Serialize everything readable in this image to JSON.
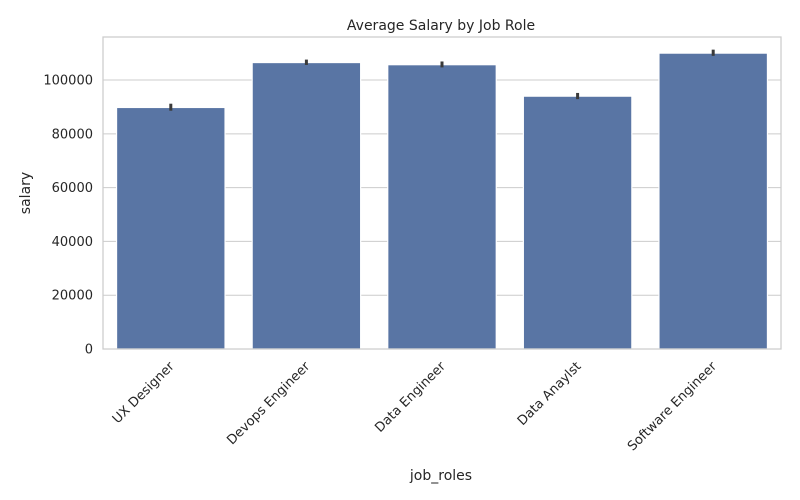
{
  "chart_data": {
    "type": "bar",
    "title": "Average Salary by Job Role",
    "xlabel": "job_roles",
    "ylabel": "salary",
    "categories": [
      "UX Designer",
      "Devops Engineer",
      "Data Engineer",
      "Data Anaylst",
      "Software Engineer"
    ],
    "values": [
      89800,
      106500,
      105700,
      94000,
      110000
    ],
    "error_low": [
      88600,
      105600,
      104700,
      92900,
      109000
    ],
    "error_high": [
      91200,
      107600,
      106900,
      95200,
      111300
    ],
    "ylim": [
      0,
      116000
    ],
    "yticks": [
      0,
      20000,
      40000,
      60000,
      80000,
      100000
    ],
    "grid": "horizontal",
    "bar_color": "#5975a4",
    "error_color": "#3a3a3a",
    "tick_label_rotation": 45
  }
}
